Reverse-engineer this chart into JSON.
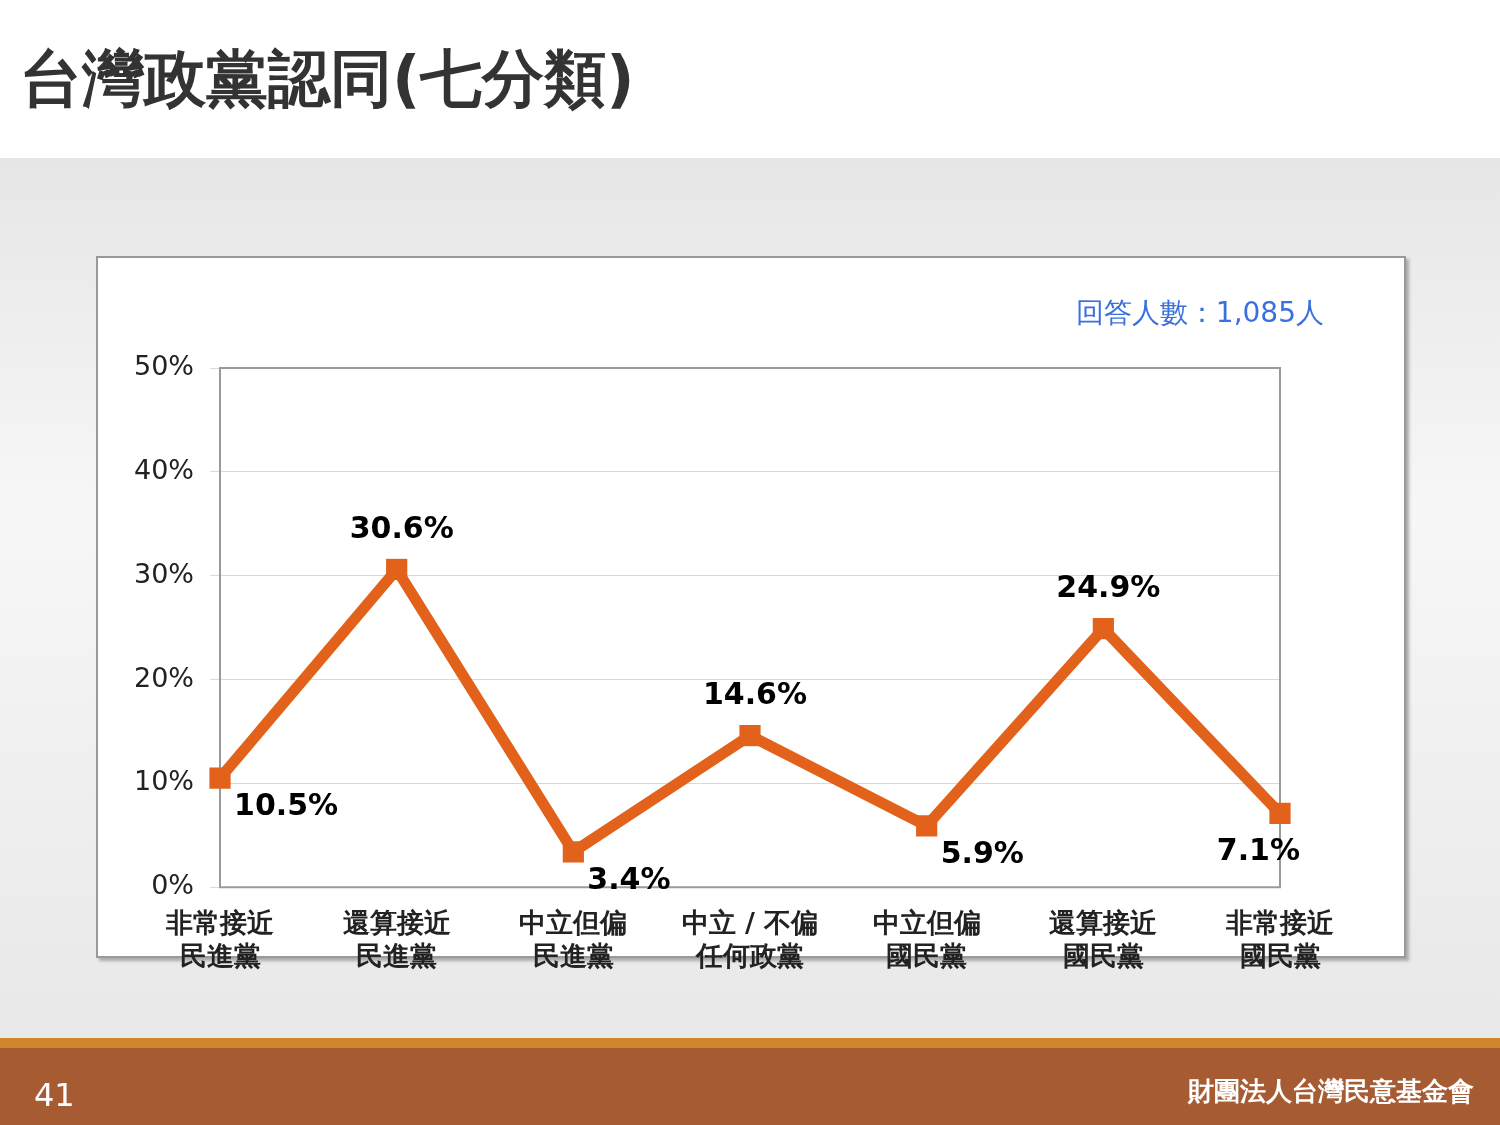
{
  "chart_data": {
    "type": "line",
    "title": "台灣政黨認同(七分類)",
    "categories": [
      "非常接近民進黨",
      "還算接近民進黨",
      "中立但偏民進黨",
      "中立 / 不偏任何政黨",
      "中立但偏國民黨",
      "還算接近國民黨",
      "非常接近國民黨"
    ],
    "series": [
      {
        "color": "#e2621b",
        "values": [
          10.5,
          30.6,
          3.4,
          14.6,
          5.9,
          24.9,
          7.1
        ],
        "value_labels": [
          "10.5%",
          "30.6%",
          "3.4%",
          "14.6%",
          "5.9%",
          "24.9%",
          "7.1%"
        ]
      }
    ],
    "ylim": [
      0,
      50
    ],
    "yticks": [
      {
        "value": 0,
        "label": "0%"
      },
      {
        "value": 10,
        "label": "10%"
      },
      {
        "value": 20,
        "label": "20%"
      },
      {
        "value": 30,
        "label": "30%"
      },
      {
        "value": 40,
        "label": "40%"
      },
      {
        "value": 50,
        "label": "50%"
      }
    ],
    "grid": "y",
    "marker": "square",
    "line_style": "solid",
    "legend": false,
    "annotations": [
      "回答人數：1,085人",
      "41",
      "財團法人台灣民意基金會"
    ]
  }
}
